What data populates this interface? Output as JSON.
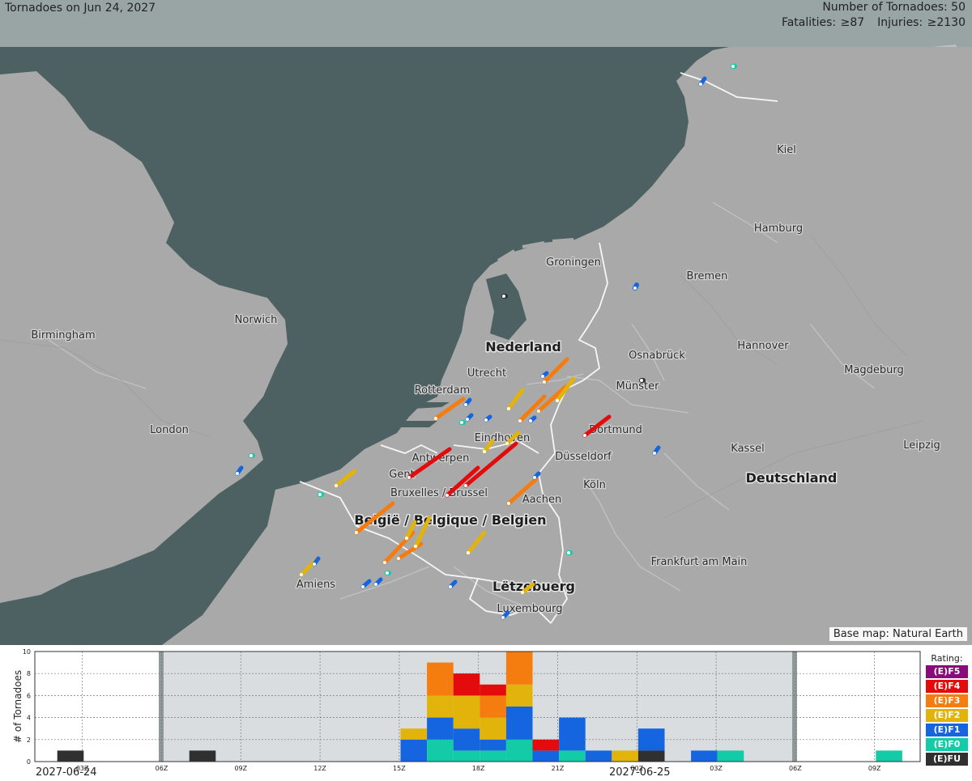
{
  "header": {
    "title": "Tornadoes on Jun 24, 2027",
    "count": "Number of Tornadoes: 50",
    "fatalities": "Fatalities: ≥87",
    "injuries": "Injuries: ≥2130"
  },
  "attribution": "Base map: Natural Earth",
  "map": {
    "colors": {
      "sea": "#4d6163",
      "land": "#a9a9a9",
      "border": "#ffffff",
      "river": "#c7c7c7"
    },
    "countries": [
      "Nederland",
      "België / Belgique / Belgien",
      "Deutschland",
      "Lëtzebuerg"
    ],
    "cities": [
      "Birmingham",
      "Norwich",
      "London",
      "Amiens",
      "Rotterdam",
      "Utrecht",
      "Groningen",
      "Eindhoven",
      "Antwerpen",
      "Gent",
      "Bruxelles / Brussel",
      "Aachen",
      "Düsseldorf",
      "Köln",
      "Dortmund",
      "Münster",
      "Osnabrück",
      "Bremen",
      "Hamburg",
      "Kiel",
      "Hannover",
      "Magdeburg",
      "Leipzig",
      "Kassel",
      "Frankfurt am Main",
      "Luxembourg"
    ]
  },
  "chart_data": {
    "type": "bar",
    "ylabel": "# of Tornadoes",
    "ylim": [
      0,
      10
    ],
    "yticks": [
      0,
      2,
      4,
      6,
      8,
      10
    ],
    "xticks": [
      "03Z",
      "06Z",
      "09Z",
      "12Z",
      "15Z",
      "18Z",
      "21Z",
      "00Z",
      "03Z",
      "06Z",
      "09Z"
    ],
    "dates": [
      "2027-06-24",
      "2027-06-25"
    ],
    "legend_title": "Rating:",
    "ratings": [
      "(E)F5",
      "(E)F4",
      "(E)F3",
      "(E)F2",
      "(E)F1",
      "(E)F0",
      "(E)FU"
    ],
    "rating_colors": {
      "(E)F5": "#8b0a7a",
      "(E)F4": "#e30b0b",
      "(E)F3": "#f57c0f",
      "(E)F2": "#e2b30b",
      "(E)F1": "#1565e0",
      "(E)F0": "#13cba7",
      "(E)FU": "#303030"
    },
    "bars": [
      {
        "slot": 0,
        "counts": {
          "(E)FU": 1
        }
      },
      {
        "slot": 5,
        "counts": {
          "(E)FU": 1
        }
      },
      {
        "slot": 13,
        "counts": {
          "(E)F1": 2,
          "(E)F2": 1
        }
      },
      {
        "slot": 14,
        "counts": {
          "(E)F0": 2,
          "(E)F1": 2,
          "(E)F2": 2,
          "(E)F3": 3
        }
      },
      {
        "slot": 15,
        "counts": {
          "(E)F0": 1,
          "(E)F1": 2,
          "(E)F2": 3,
          "(E)F4": 2
        }
      },
      {
        "slot": 16,
        "counts": {
          "(E)F0": 1,
          "(E)F1": 1,
          "(E)F2": 2,
          "(E)F3": 2,
          "(E)F4": 1
        }
      },
      {
        "slot": 17,
        "counts": {
          "(E)F0": 2,
          "(E)F1": 3,
          "(E)F2": 2,
          "(E)F3": 3
        }
      },
      {
        "slot": 18,
        "counts": {
          "(E)F1": 1,
          "(E)F4": 1
        }
      },
      {
        "slot": 19,
        "counts": {
          "(E)F0": 1,
          "(E)F1": 3
        }
      },
      {
        "slot": 20,
        "counts": {
          "(E)F1": 1
        }
      },
      {
        "slot": 21,
        "counts": {
          "(E)F2": 1
        }
      },
      {
        "slot": 22,
        "counts": {
          "(E)FU": 1,
          "(E)F1": 2
        }
      },
      {
        "slot": 24,
        "counts": {
          "(E)F1": 1
        }
      },
      {
        "slot": 25,
        "counts": {
          "(E)F0": 1
        }
      },
      {
        "slot": 31,
        "counts": {
          "(E)F0": 1
        }
      }
    ]
  }
}
